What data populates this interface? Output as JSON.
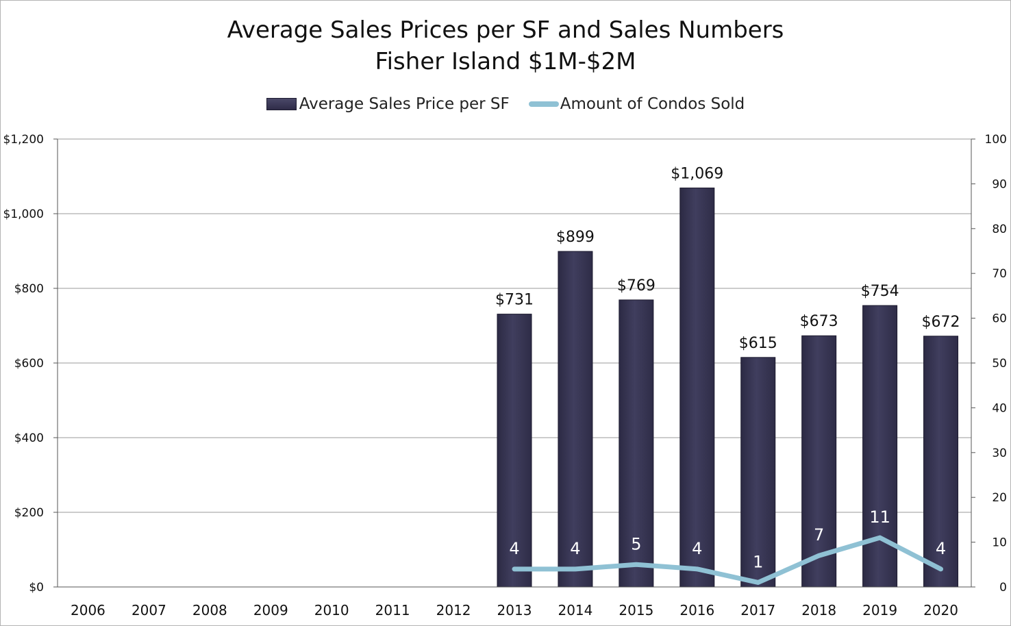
{
  "chart_data": {
    "type": "bar",
    "title": "Average Sales Prices per SF and Sales Numbers",
    "subtitle": "Fisher Island $1M-$2M",
    "categories": [
      "2006",
      "2007",
      "2008",
      "2009",
      "2010",
      "2011",
      "2012",
      "2013",
      "2014",
      "2015",
      "2016",
      "2017",
      "2018",
      "2019",
      "2020"
    ],
    "series": [
      {
        "name": "Average Sales Price per SF",
        "type": "bar",
        "axis": "left",
        "color": "#3a3856",
        "values": [
          null,
          null,
          null,
          null,
          null,
          null,
          null,
          731,
          899,
          769,
          1069,
          615,
          673,
          754,
          672
        ],
        "labels": [
          "",
          "",
          "",
          "",
          "",
          "",
          "",
          "$731",
          "$899",
          "$769",
          "$1,069",
          "$615",
          "$673",
          "$754",
          "$672"
        ]
      },
      {
        "name": "Amount of Condos Sold",
        "type": "line",
        "axis": "right",
        "color": "#8fc1d4",
        "values": [
          null,
          null,
          null,
          null,
          null,
          null,
          null,
          4,
          4,
          5,
          4,
          1,
          7,
          11,
          4
        ],
        "labels": [
          "",
          "",
          "",
          "",
          "",
          "",
          "",
          "4",
          "4",
          "5",
          "4",
          "1",
          "7",
          "11",
          "4"
        ]
      }
    ],
    "y_left": {
      "min": 0,
      "max": 1200,
      "ticks": [
        0,
        200,
        400,
        600,
        800,
        1000,
        1200
      ],
      "tick_labels": [
        "$0",
        "$200",
        "$400",
        "$600",
        "$800",
        "$1,000",
        "$1,200"
      ]
    },
    "y_right": {
      "min": 0,
      "max": 100,
      "ticks": [
        0,
        10,
        20,
        30,
        40,
        50,
        60,
        70,
        80,
        90,
        100
      ],
      "tick_labels": [
        "0",
        "10",
        "20",
        "30",
        "40",
        "50",
        "60",
        "70",
        "80",
        "90",
        "100"
      ]
    },
    "grid": true,
    "legend": "top-center"
  }
}
